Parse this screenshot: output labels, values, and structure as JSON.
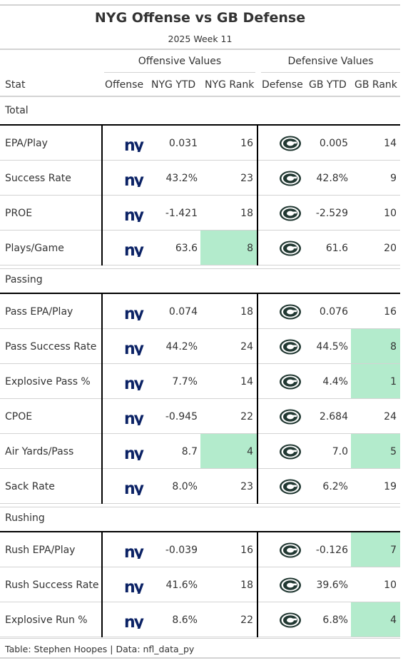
{
  "title": "NYG Offense vs GB Defense",
  "subtitle": "2025 Week 11",
  "spanners": {
    "offense": "Offensive Values",
    "defense": "Defensive Values"
  },
  "columns": [
    "Stat",
    "Offense",
    "NYG YTD",
    "NYG Rank",
    "Defense",
    "GB YTD",
    "GB Rank"
  ],
  "logos": {
    "offense": "nyg-logo-icon",
    "defense": "gb-logo-icon"
  },
  "colors": {
    "highlight": "#b3ebcc",
    "nyg_blue": "#0b2265",
    "gb_green": "#203731",
    "gb_gold": "#ffb612"
  },
  "groups": [
    {
      "name": "Total",
      "rows": [
        {
          "stat": "EPA/Play",
          "nyg_ytd": "0.031",
          "nyg_rank": "16",
          "nyg_hl": false,
          "gb_ytd": "0.005",
          "gb_rank": "14",
          "gb_hl": false
        },
        {
          "stat": "Success Rate",
          "nyg_ytd": "43.2%",
          "nyg_rank": "23",
          "nyg_hl": false,
          "gb_ytd": "42.8%",
          "gb_rank": "9",
          "gb_hl": false
        },
        {
          "stat": "PROE",
          "nyg_ytd": "-1.421",
          "nyg_rank": "18",
          "nyg_hl": false,
          "gb_ytd": "-2.529",
          "gb_rank": "10",
          "gb_hl": false
        },
        {
          "stat": "Plays/Game",
          "nyg_ytd": "63.6",
          "nyg_rank": "8",
          "nyg_hl": true,
          "gb_ytd": "61.6",
          "gb_rank": "20",
          "gb_hl": false
        }
      ]
    },
    {
      "name": "Passing",
      "rows": [
        {
          "stat": "Pass EPA/Play",
          "nyg_ytd": "0.074",
          "nyg_rank": "18",
          "nyg_hl": false,
          "gb_ytd": "0.076",
          "gb_rank": "16",
          "gb_hl": false
        },
        {
          "stat": "Pass Success Rate",
          "nyg_ytd": "44.2%",
          "nyg_rank": "24",
          "nyg_hl": false,
          "gb_ytd": "44.5%",
          "gb_rank": "8",
          "gb_hl": true
        },
        {
          "stat": "Explosive Pass %",
          "nyg_ytd": "7.7%",
          "nyg_rank": "14",
          "nyg_hl": false,
          "gb_ytd": "4.4%",
          "gb_rank": "1",
          "gb_hl": true
        },
        {
          "stat": "CPOE",
          "nyg_ytd": "-0.945",
          "nyg_rank": "22",
          "nyg_hl": false,
          "gb_ytd": "2.684",
          "gb_rank": "24",
          "gb_hl": false
        },
        {
          "stat": "Air Yards/Pass",
          "nyg_ytd": "8.7",
          "nyg_rank": "4",
          "nyg_hl": true,
          "gb_ytd": "7.0",
          "gb_rank": "5",
          "gb_hl": true
        },
        {
          "stat": "Sack Rate",
          "nyg_ytd": "8.0%",
          "nyg_rank": "23",
          "nyg_hl": false,
          "gb_ytd": "6.2%",
          "gb_rank": "19",
          "gb_hl": false
        }
      ]
    },
    {
      "name": "Rushing",
      "rows": [
        {
          "stat": "Rush EPA/Play",
          "nyg_ytd": "-0.039",
          "nyg_rank": "16",
          "nyg_hl": false,
          "gb_ytd": "-0.126",
          "gb_rank": "7",
          "gb_hl": true
        },
        {
          "stat": "Rush Success Rate",
          "nyg_ytd": "41.6%",
          "nyg_rank": "18",
          "nyg_hl": false,
          "gb_ytd": "39.6%",
          "gb_rank": "10",
          "gb_hl": false
        },
        {
          "stat": "Explosive Run %",
          "nyg_ytd": "8.6%",
          "nyg_rank": "22",
          "nyg_hl": false,
          "gb_ytd": "6.8%",
          "gb_rank": "4",
          "gb_hl": true
        }
      ]
    }
  ],
  "footer": "Table: Stephen Hoopes | Data: nfl_data_py"
}
